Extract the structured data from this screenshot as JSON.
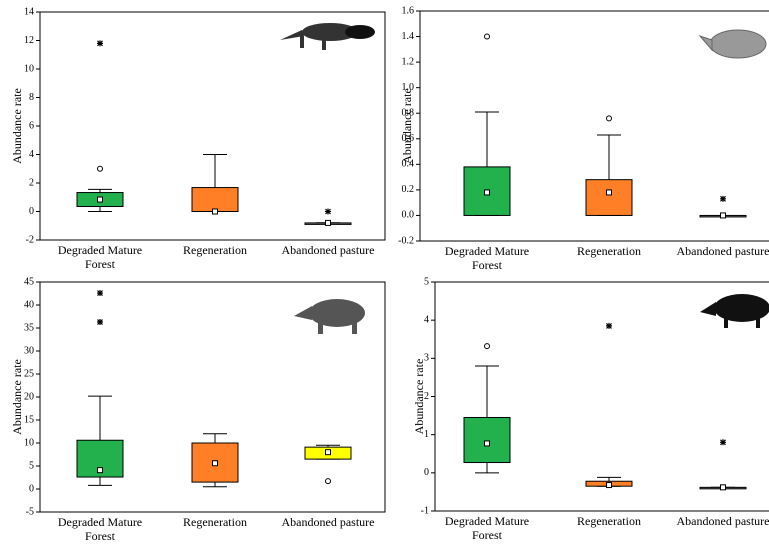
{
  "chart_data": [
    {
      "type": "box",
      "ylabel": "Abundance rate",
      "categories": [
        "Degraded Mature Forest",
        "Regeneration",
        "Abandoned pasture"
      ],
      "ylim": [
        -2,
        14
      ],
      "yticks": [
        -2,
        0,
        2,
        4,
        6,
        8,
        10,
        12,
        14
      ],
      "boxes": [
        {
          "color": "#22b14c",
          "whisker_low": 0,
          "q1": 0.35,
          "median": 0.84,
          "q3": 1.33,
          "whisker_high": 1.55,
          "outliers": [
            3.0
          ],
          "extremes": [
            11.8
          ]
        },
        {
          "color": "#ff7f27",
          "whisker_low": 0,
          "q1": 0,
          "median": 0,
          "q3": 1.68,
          "whisker_high": 4.0
        },
        {
          "color": "#808080",
          "whisker_low": -0.8,
          "q1": -0.8,
          "median": -0.8,
          "q3": -0.8,
          "whisker_high": -0.8,
          "extremes": [
            0
          ]
        }
      ]
    },
    {
      "type": "box",
      "ylabel": "Abundance rate",
      "categories": [
        "Degraded Mature Forest",
        "Regeneration",
        "Abandoned pasture"
      ],
      "ylim": [
        -0.2,
        1.6
      ],
      "yticks": [
        -0.2,
        {
          "value": 0,
          "label": "0.0"
        },
        0.2,
        0.4,
        0.6,
        0.8,
        {
          "value": 1,
          "label": "1.0"
        },
        1.2,
        1.4,
        1.6
      ],
      "boxes": [
        {
          "color": "#22b14c",
          "whisker_low": 0,
          "q1": 0,
          "median": 0.18,
          "q3": 0.38,
          "whisker_high": 0.81,
          "outliers": [
            1.4
          ]
        },
        {
          "color": "#ff7f27",
          "whisker_low": 0,
          "q1": 0,
          "median": 0.18,
          "q3": 0.28,
          "whisker_high": 0.63,
          "outliers": [
            0.76
          ]
        },
        {
          "color": "#808080",
          "whisker_low": 0,
          "q1": 0,
          "median": 0,
          "q3": 0,
          "whisker_high": 0,
          "extremes": [
            0.13
          ]
        }
      ]
    },
    {
      "type": "box",
      "ylabel": "Abundance rate",
      "categories": [
        "Degraded Mature Forest",
        "Regeneration",
        "Abandoned pasture"
      ],
      "ylim": [
        -5,
        45
      ],
      "yticks": [
        -5,
        0,
        5,
        10,
        15,
        20,
        25,
        30,
        35,
        40,
        45
      ],
      "boxes": [
        {
          "color": "#22b14c",
          "whisker_low": 0.8,
          "q1": 2.6,
          "median": 4.1,
          "q3": 10.6,
          "whisker_high": 20.2,
          "extremes": [
            42.6,
            36.3
          ]
        },
        {
          "color": "#ff7f27",
          "whisker_low": 0.5,
          "q1": 1.5,
          "median": 5.6,
          "q3": 10,
          "whisker_high": 12
        },
        {
          "color": "#ffff00",
          "whisker_low": 6.5,
          "q1": 6.5,
          "median": 8.0,
          "q3": 9.1,
          "whisker_high": 9.5,
          "outliers": [
            1.7
          ]
        }
      ]
    },
    {
      "type": "box",
      "ylabel": "Abundance rate",
      "categories": [
        "Degraded Mature Forest",
        "Regeneration",
        "Abandoned pasture"
      ],
      "ylim": [
        -1,
        5
      ],
      "yticks": [
        -1,
        0,
        1,
        2,
        3,
        4,
        5
      ],
      "boxes": [
        {
          "color": "#22b14c",
          "whisker_low": 0,
          "q1": 0.27,
          "median": 0.77,
          "q3": 1.45,
          "whisker_high": 2.8,
          "outliers": [
            3.32
          ]
        },
        {
          "color": "#ff7f27",
          "whisker_low": -0.35,
          "q1": -0.35,
          "median": -0.32,
          "q3": -0.22,
          "whisker_high": -0.12,
          "extremes": [
            3.85
          ]
        },
        {
          "color": "#808080",
          "whisker_low": -0.38,
          "q1": -0.38,
          "median": -0.38,
          "q3": -0.38,
          "whisker_high": -0.38,
          "extremes": [
            0.8
          ]
        }
      ]
    }
  ]
}
